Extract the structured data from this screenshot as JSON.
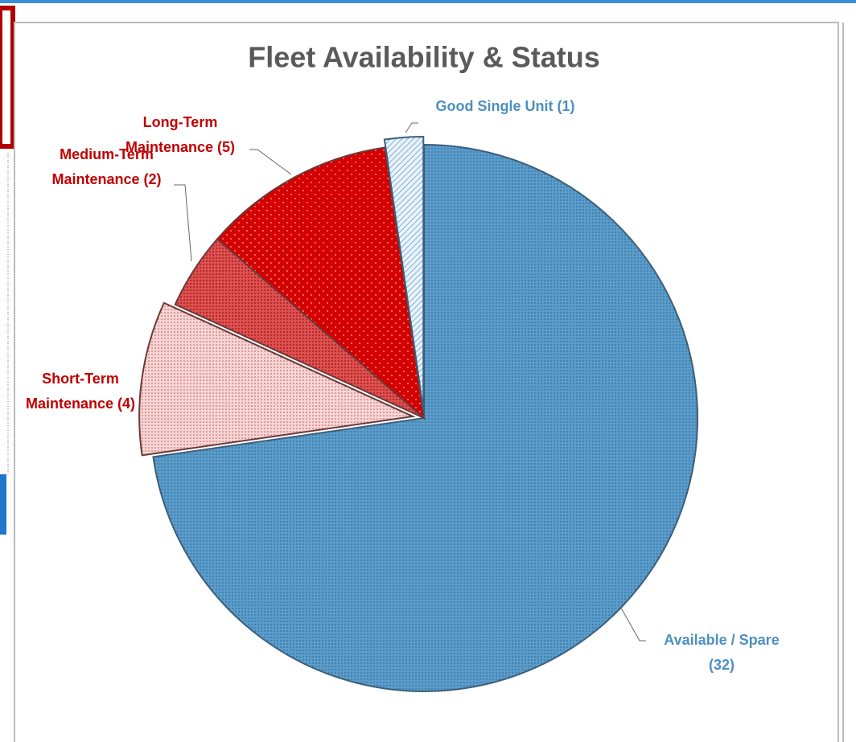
{
  "chart_data": {
    "type": "pie",
    "title": "Fleet Availability & Status",
    "categories": [
      "Available / Spare",
      "Short-Term Maintenance",
      "Medium-Term Maintenance",
      "Long-Term Maintenance",
      "Good Single Unit"
    ],
    "values": [
      32,
      4,
      2,
      5,
      1
    ],
    "value_labels": [
      "(32)",
      "(4)",
      "(2)",
      "(5)",
      "(1)"
    ],
    "colors": [
      "#4d93c3",
      "#f6cdcd",
      "#d93a3a",
      "#d40000",
      "#d3e6f4"
    ]
  }
}
